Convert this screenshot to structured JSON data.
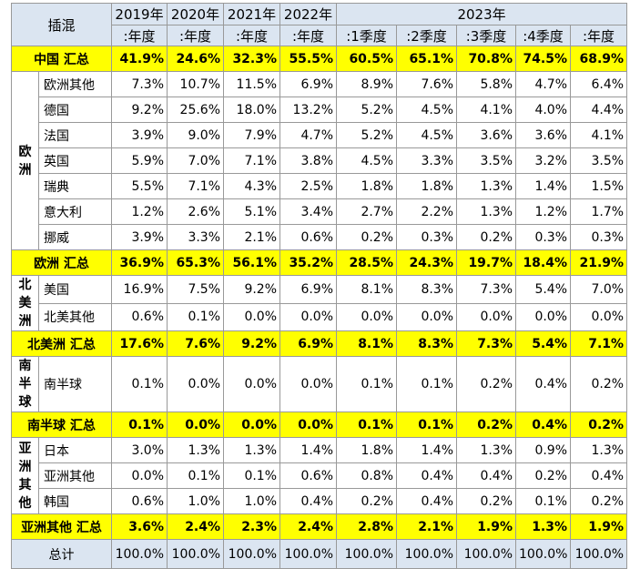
{
  "header": {
    "title": "插混",
    "years": [
      "2019年",
      "2020年",
      "2021年",
      "2022年",
      "2023年"
    ],
    "subheaders": [
      ":年度",
      ":年度",
      ":年度",
      ":年度",
      ":1季度",
      ":2季度",
      ":3季度",
      ":4季度",
      ":年度"
    ]
  },
  "china_total": {
    "label": "中国 汇总",
    "values": [
      "41.9%",
      "24.6%",
      "32.3%",
      "55.5%",
      "60.5%",
      "65.1%",
      "70.8%",
      "74.5%",
      "68.9%"
    ]
  },
  "groups": [
    {
      "region": "欧洲",
      "rows": [
        {
          "label": "欧洲其他",
          "values": [
            "7.3%",
            "10.7%",
            "11.5%",
            "6.9%",
            "8.9%",
            "7.6%",
            "5.8%",
            "4.7%",
            "6.4%"
          ]
        },
        {
          "label": "德国",
          "values": [
            "9.2%",
            "25.6%",
            "18.0%",
            "13.2%",
            "5.2%",
            "4.5%",
            "4.1%",
            "4.0%",
            "4.4%"
          ]
        },
        {
          "label": "法国",
          "values": [
            "3.9%",
            "9.0%",
            "7.9%",
            "4.7%",
            "5.2%",
            "4.5%",
            "3.6%",
            "3.6%",
            "4.1%"
          ]
        },
        {
          "label": "英国",
          "values": [
            "5.9%",
            "7.0%",
            "7.1%",
            "3.8%",
            "4.5%",
            "3.3%",
            "3.5%",
            "3.2%",
            "3.5%"
          ]
        },
        {
          "label": "瑞典",
          "values": [
            "5.5%",
            "7.1%",
            "4.3%",
            "2.5%",
            "1.8%",
            "1.8%",
            "1.3%",
            "1.4%",
            "1.5%"
          ]
        },
        {
          "label": "意大利",
          "values": [
            "1.2%",
            "2.6%",
            "5.1%",
            "3.4%",
            "2.7%",
            "2.2%",
            "1.3%",
            "1.2%",
            "1.7%"
          ]
        },
        {
          "label": "挪威",
          "values": [
            "3.9%",
            "3.3%",
            "2.1%",
            "0.6%",
            "0.2%",
            "0.3%",
            "0.2%",
            "0.3%",
            "0.3%"
          ]
        }
      ],
      "total": {
        "label": "欧洲 汇总",
        "values": [
          "36.9%",
          "65.3%",
          "56.1%",
          "35.2%",
          "28.5%",
          "24.3%",
          "19.7%",
          "18.4%",
          "21.9%"
        ]
      }
    },
    {
      "region": "北美洲",
      "rows": [
        {
          "label": "美国",
          "values": [
            "16.9%",
            "7.5%",
            "9.2%",
            "6.9%",
            "8.1%",
            "8.3%",
            "7.3%",
            "5.4%",
            "7.0%"
          ]
        },
        {
          "label": "北美其他",
          "values": [
            "0.6%",
            "0.1%",
            "0.0%",
            "0.0%",
            "0.0%",
            "0.0%",
            "0.0%",
            "0.0%",
            "0.0%"
          ]
        }
      ],
      "total": {
        "label": "北美洲 汇总",
        "values": [
          "17.6%",
          "7.6%",
          "9.2%",
          "6.9%",
          "8.1%",
          "8.3%",
          "7.3%",
          "5.4%",
          "7.1%"
        ]
      }
    },
    {
      "region": "南半球",
      "rows": [
        {
          "label": "南半球",
          "values": [
            "0.1%",
            "0.0%",
            "0.0%",
            "0.0%",
            "0.1%",
            "0.1%",
            "0.2%",
            "0.4%",
            "0.2%"
          ]
        }
      ],
      "total": {
        "label": "南半球 汇总",
        "values": [
          "0.1%",
          "0.0%",
          "0.0%",
          "0.0%",
          "0.1%",
          "0.1%",
          "0.2%",
          "0.4%",
          "0.2%"
        ]
      }
    },
    {
      "region": "亚洲其他",
      "rows": [
        {
          "label": "日本",
          "values": [
            "3.0%",
            "1.3%",
            "1.3%",
            "1.4%",
            "1.8%",
            "1.4%",
            "1.3%",
            "0.9%",
            "1.3%"
          ]
        },
        {
          "label": "亚洲其他",
          "values": [
            "0.0%",
            "0.1%",
            "0.1%",
            "0.6%",
            "0.8%",
            "0.4%",
            "0.4%",
            "0.2%",
            "0.4%"
          ]
        },
        {
          "label": "韩国",
          "values": [
            "0.6%",
            "1.0%",
            "1.0%",
            "0.4%",
            "0.2%",
            "0.4%",
            "0.2%",
            "0.1%",
            "0.2%"
          ]
        }
      ],
      "total": {
        "label": "亚洲其他 汇总",
        "values": [
          "3.6%",
          "2.4%",
          "2.3%",
          "2.4%",
          "2.8%",
          "2.1%",
          "1.9%",
          "1.3%",
          "1.9%"
        ]
      }
    }
  ],
  "grand_total": {
    "label": "总计",
    "values": [
      "100.0%",
      "100.0%",
      "100.0%",
      "100.0%",
      "100.0%",
      "100.0%",
      "100.0%",
      "100.0%",
      "100.0%"
    ]
  }
}
